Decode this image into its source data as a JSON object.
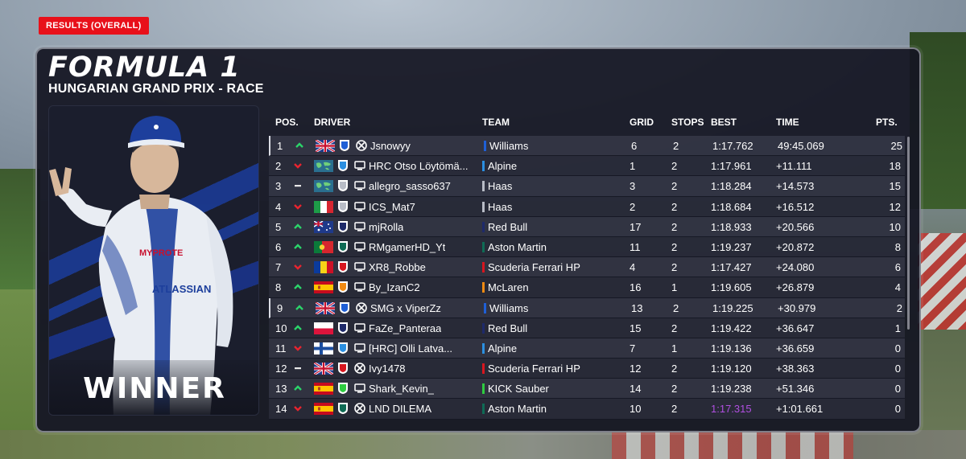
{
  "header": {
    "badge": "RESULTS (OVERALL)",
    "logo": "FORMULA 1",
    "event": "HUNGARIAN GRAND PRIX - RACE"
  },
  "winner_card": {
    "label": "WINNER",
    "suit_text_1": "MYPROTE",
    "suit_text_2": "ATLASSIAN"
  },
  "columns": {
    "pos": "POS.",
    "driver": "DRIVER",
    "team": "TEAM",
    "grid": "GRID",
    "stops": "STOPS",
    "best": "BEST",
    "time": "TIME",
    "pts": "PTS."
  },
  "colors": {
    "accent_red": "#e8101a",
    "fastest_lap": "#b04fe0",
    "up": "#2bd46a",
    "down": "#e8242f"
  },
  "rows": [
    {
      "pos": "1",
      "change": "up",
      "flag": "uk",
      "platform": "xbox",
      "driver": "Jsnowyy",
      "team": "Williams",
      "team_color": "#1f5fd6",
      "grid": "6",
      "stops": "2",
      "best": "1:17.762",
      "time": "49:45.069",
      "pts": "25",
      "highlight": true
    },
    {
      "pos": "2",
      "change": "down",
      "flag": "world",
      "platform": "pc",
      "driver": "HRC Otso Löytömä...",
      "team": "Alpine",
      "team_color": "#2b8fe0",
      "grid": "1",
      "stops": "2",
      "best": "1:17.961",
      "time": "+11.111",
      "pts": "18"
    },
    {
      "pos": "3",
      "change": "same",
      "flag": "world",
      "platform": "pc",
      "driver": "allegro_sasso637",
      "team": "Haas",
      "team_color": "#b8bcc6",
      "grid": "3",
      "stops": "2",
      "best": "1:18.284",
      "time": "+14.573",
      "pts": "15"
    },
    {
      "pos": "4",
      "change": "down",
      "flag": "italy",
      "platform": "pc",
      "driver": "ICS_Mat7",
      "team": "Haas",
      "team_color": "#b8bcc6",
      "grid": "2",
      "stops": "2",
      "best": "1:18.684",
      "time": "+16.512",
      "pts": "12"
    },
    {
      "pos": "5",
      "change": "up",
      "flag": "australia",
      "platform": "pc",
      "driver": "mjRolla",
      "team": "Red Bull",
      "team_color": "#1e2a6a",
      "grid": "17",
      "stops": "2",
      "best": "1:18.933",
      "time": "+20.566",
      "pts": "10"
    },
    {
      "pos": "6",
      "change": "up",
      "flag": "portugal",
      "platform": "pc",
      "driver": "RMgamerHD_Yt",
      "team": "Aston Martin",
      "team_color": "#0f6b55",
      "grid": "11",
      "stops": "2",
      "best": "1:19.237",
      "time": "+20.872",
      "pts": "8"
    },
    {
      "pos": "7",
      "change": "down",
      "flag": "romania",
      "platform": "pc",
      "driver": "XR8_Robbe",
      "team": "Scuderia Ferrari HP",
      "team_color": "#d8161f",
      "grid": "4",
      "stops": "2",
      "best": "1:17.427",
      "time": "+24.080",
      "pts": "6"
    },
    {
      "pos": "8",
      "change": "up",
      "flag": "spain",
      "platform": "pc",
      "driver": "By_IzanC2",
      "team": "McLaren",
      "team_color": "#f08a12",
      "grid": "16",
      "stops": "1",
      "best": "1:19.605",
      "time": "+26.879",
      "pts": "4"
    },
    {
      "pos": "9",
      "change": "up",
      "flag": "uk",
      "platform": "xbox",
      "driver": "SMG x ViperZz",
      "team": "Williams",
      "team_color": "#1f5fd6",
      "grid": "13",
      "stops": "2",
      "best": "1:19.225",
      "time": "+30.979",
      "pts": "2",
      "highlight": true
    },
    {
      "pos": "10",
      "change": "up",
      "flag": "poland",
      "platform": "pc",
      "driver": "FaZe_Panteraa",
      "team": "Red Bull",
      "team_color": "#1e2a6a",
      "grid": "15",
      "stops": "2",
      "best": "1:19.422",
      "time": "+36.647",
      "pts": "1"
    },
    {
      "pos": "11",
      "change": "down",
      "flag": "finland",
      "platform": "pc",
      "driver": "[HRC] Olli Latva...",
      "team": "Alpine",
      "team_color": "#2b8fe0",
      "grid": "7",
      "stops": "1",
      "best": "1:19.136",
      "time": "+36.659",
      "pts": "0"
    },
    {
      "pos": "12",
      "change": "same",
      "flag": "uk",
      "platform": "xbox",
      "driver": "Ivy1478",
      "team": "Scuderia Ferrari HP",
      "team_color": "#d8161f",
      "grid": "12",
      "stops": "2",
      "best": "1:19.120",
      "time": "+38.363",
      "pts": "0"
    },
    {
      "pos": "13",
      "change": "up",
      "flag": "spain",
      "platform": "pc",
      "driver": "Shark_Kevin_",
      "team": "KICK Sauber",
      "team_color": "#2ecc40",
      "grid": "14",
      "stops": "2",
      "best": "1:19.238",
      "time": "+51.346",
      "pts": "0"
    },
    {
      "pos": "14",
      "change": "down",
      "flag": "spain",
      "platform": "xbox",
      "driver": "LND DILEMA",
      "team": "Aston Martin",
      "team_color": "#0f6b55",
      "grid": "10",
      "stops": "2",
      "best": "1:17.315",
      "time": "+1:01.661",
      "pts": "0",
      "fastest": true
    }
  ]
}
